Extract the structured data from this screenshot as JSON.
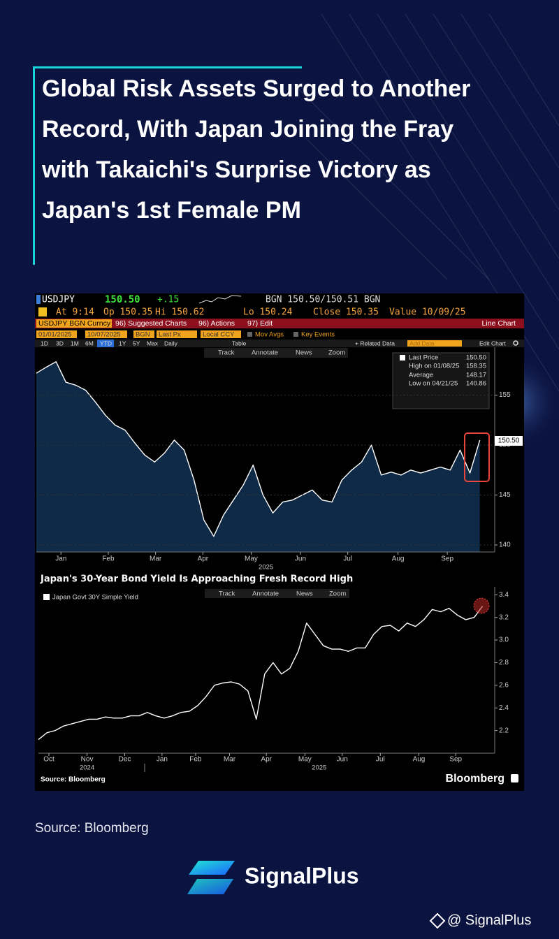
{
  "header": {
    "title": "Global Risk Assets Surged to Another Record, With Japan Joining the Fray with Takaichi's Surprise Victory as Japan's 1st Female PM"
  },
  "terminal": {
    "ticker": "USDJPY",
    "last": "150.50",
    "change": "+.15",
    "quote": "BGN 150.50/150.51 BGN",
    "stats": [
      "At 9:14",
      "Op 150.35",
      "Hi 150.62",
      "Lo 150.24",
      "Close 150.35",
      "Value 10/09/25"
    ],
    "menu": [
      "USDJPY BGN Curncy",
      "96) Suggested Charts",
      "96) Actions",
      "97) Edit"
    ],
    "chart_kind": "Line Chart",
    "settings": [
      "01/01/2025",
      "10/07/2025",
      "BGN",
      "Last Px",
      "Local CCY",
      "Mov Avgs",
      "Key Events"
    ],
    "periods": [
      "1D",
      "3D",
      "1M",
      "6M",
      "YTD",
      "1Y",
      "5Y",
      "Max",
      "Daily",
      "Table"
    ],
    "tools_right": [
      "+ Related Data",
      "Add Data",
      "Edit Chart"
    ],
    "chart_tools": [
      "Track",
      "Annotate",
      "News",
      "Zoom"
    ],
    "legend": [
      {
        "label": "Last Price",
        "value": "150.50"
      },
      {
        "label": "High on 01/08/25",
        "value": "158.35"
      },
      {
        "label": "Average",
        "value": "148.17"
      },
      {
        "label": "Low on 04/21/25",
        "value": "140.86"
      }
    ],
    "price_tag": "150.50",
    "source": "Source: Bloomberg",
    "brand": "Bloomberg"
  },
  "chart_data": [
    {
      "type": "line",
      "color": "#ffffff",
      "area": true,
      "area_color": "#0e2a47",
      "grid": true,
      "values": [
        157.2,
        157.8,
        158.35,
        156.3,
        156.0,
        155.5,
        154.3,
        153.0,
        152.0,
        151.5,
        150.2,
        149.0,
        148.3,
        149.2,
        150.5,
        149.5,
        146.5,
        142.5,
        140.86,
        143.0,
        144.5,
        146.0,
        148.0,
        145.0,
        143.2,
        144.3,
        144.5,
        145.0,
        145.5,
        144.5,
        144.3,
        146.5,
        147.5,
        148.3,
        150.0,
        147.0,
        147.3,
        147.0,
        147.5,
        147.2,
        147.5,
        147.8,
        147.5,
        149.5,
        147.2,
        150.5
      ],
      "xlim": [
        0,
        46.3
      ],
      "ylim": [
        139.3,
        159.8
      ],
      "yticks": [
        140,
        145,
        150,
        155
      ],
      "xticks": [
        {
          "value": 2.5,
          "label": "Jan"
        },
        {
          "value": 7.3,
          "label": "Feb"
        },
        {
          "value": 12.1,
          "label": "Mar"
        },
        {
          "value": 16.9,
          "label": "Apr"
        },
        {
          "value": 21.8,
          "label": "May"
        },
        {
          "value": 26.8,
          "label": "Jun"
        },
        {
          "value": 31.6,
          "label": "Jul"
        },
        {
          "value": 36.7,
          "label": "Aug"
        },
        {
          "value": 41.7,
          "label": "Sep"
        }
      ],
      "year_ticks": [
        {
          "value": 23.3,
          "label": "2025"
        }
      ]
    },
    {
      "type": "line",
      "title": "Japan's 30-Year Bond Yield Is Approaching Fresh Record High",
      "grid": false,
      "series": [
        {
          "name": "Japan Govt 30Y Simple Yield",
          "color": "#ffffff",
          "values": [
            2.12,
            2.18,
            2.2,
            2.24,
            2.26,
            2.28,
            2.3,
            2.3,
            2.32,
            2.31,
            2.31,
            2.33,
            2.33,
            2.36,
            2.33,
            2.31,
            2.33,
            2.36,
            2.37,
            2.42,
            2.5,
            2.6,
            2.62,
            2.63,
            2.61,
            2.55,
            2.3,
            2.7,
            2.8,
            2.7,
            2.75,
            2.9,
            3.15,
            3.05,
            2.95,
            2.92,
            2.92,
            2.9,
            2.93,
            2.93,
            3.05,
            3.12,
            3.13,
            3.08,
            3.15,
            3.12,
            3.18,
            3.27,
            3.25,
            3.28,
            3.22,
            3.18,
            3.2,
            3.3
          ]
        }
      ],
      "xlim": [
        0,
        54.2
      ],
      "ylim": [
        2.0,
        3.47
      ],
      "yticks": [
        2.2,
        2.4,
        2.6,
        2.8,
        {
          "value": 3,
          "label": "3.0"
        },
        3.2,
        3.4
      ],
      "xticks": [
        {
          "value": 1.25,
          "label": "Oct"
        },
        {
          "value": 5.8,
          "label": "Nov"
        },
        {
          "value": 10.3,
          "label": "Dec"
        },
        {
          "value": 14.75,
          "label": "Jan"
        },
        {
          "value": 18.75,
          "label": "Feb"
        },
        {
          "value": 22.8,
          "label": "Mar"
        },
        {
          "value": 27.2,
          "label": "Apr"
        },
        {
          "value": 31.8,
          "label": "May"
        },
        {
          "value": 36.25,
          "label": "Jun"
        },
        {
          "value": 40.8,
          "label": "Jul"
        },
        {
          "value": 45.4,
          "label": "Aug"
        },
        {
          "value": 49.8,
          "label": "Sep"
        }
      ],
      "year_ticks": [
        {
          "value": 5.8,
          "label": "2024"
        },
        {
          "value": 33.5,
          "label": "2025"
        }
      ]
    }
  ],
  "footer": {
    "source": "Source: Bloomberg",
    "brand": "SignalPlus",
    "handle": "@ SignalPlus"
  }
}
